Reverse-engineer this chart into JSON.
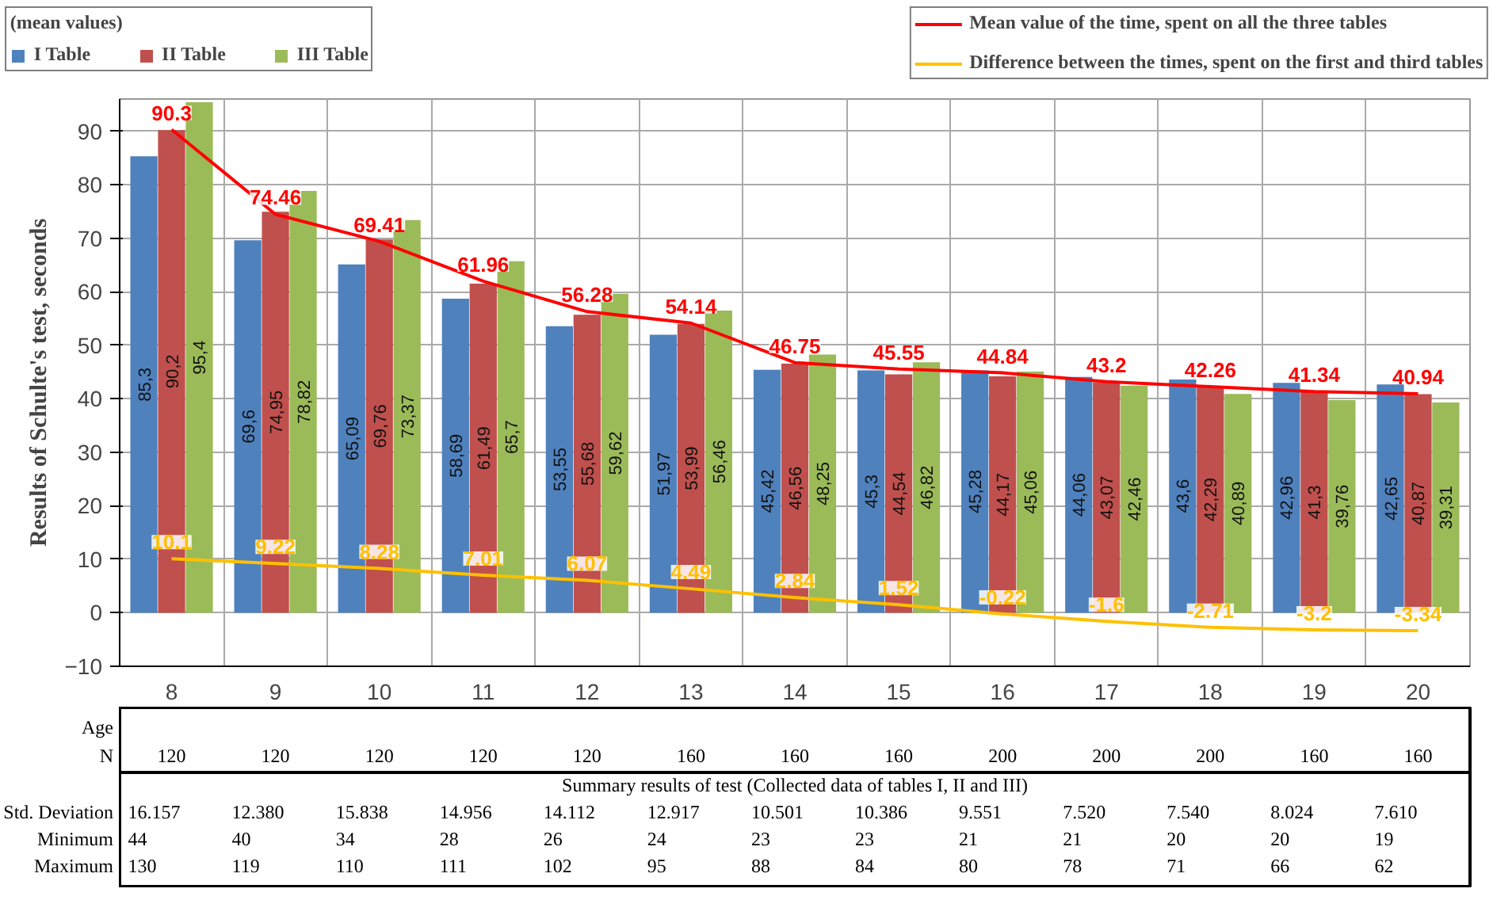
{
  "chart_data": {
    "type": "bar",
    "ylabel": "Results of Schulte's test, seconds",
    "legend_title": "(mean values)",
    "categories": [
      "8",
      "9",
      "10",
      "11",
      "12",
      "13",
      "14",
      "15",
      "16",
      "17",
      "18",
      "19",
      "20"
    ],
    "series": [
      {
        "name": "I Table",
        "color": "#4f81bd",
        "values": [
          85.3,
          69.6,
          65.09,
          58.69,
          53.55,
          51.97,
          45.42,
          45.3,
          45.28,
          44.06,
          43.6,
          42.96,
          42.65
        ],
        "value_labels": [
          "85,3",
          "69,6",
          "65,09",
          "58,69",
          "53,55",
          "51,97",
          "45,42",
          "45,3",
          "45,28",
          "44,06",
          "43,6",
          "42,96",
          "42,65"
        ]
      },
      {
        "name": "II Table",
        "color": "#c0504d",
        "values": [
          90.2,
          74.95,
          69.76,
          61.49,
          55.68,
          53.99,
          46.56,
          44.54,
          44.17,
          43.07,
          42.29,
          41.3,
          40.87
        ],
        "value_labels": [
          "90,2",
          "74,95",
          "69,76",
          "61,49",
          "55,68",
          "53,99",
          "46,56",
          "44,54",
          "44,17",
          "43,07",
          "42,29",
          "41,3",
          "40,87"
        ]
      },
      {
        "name": "III Table",
        "color": "#9bbb59",
        "values": [
          95.4,
          78.82,
          73.37,
          65.7,
          59.62,
          56.46,
          48.25,
          46.82,
          45.06,
          42.46,
          40.89,
          39.76,
          39.31
        ],
        "value_labels": [
          "95,4",
          "78,82",
          "73,37",
          "65,7",
          "59,62",
          "56,46",
          "48,25",
          "46,82",
          "45,06",
          "42,46",
          "40,89",
          "39,76",
          "39,31"
        ]
      },
      {
        "name": "Mean value of the time, spent on all the three tables",
        "type": "line",
        "color": "#ff0000",
        "values": [
          90.3,
          74.46,
          69.41,
          61.96,
          56.28,
          54.14,
          46.75,
          45.55,
          44.84,
          43.2,
          42.26,
          41.34,
          40.94
        ],
        "value_labels": [
          "90.3",
          "74.46",
          "69.41",
          "61.96",
          "56.28",
          "54.14",
          "46.75",
          "45.55",
          "44.84",
          "43.2",
          "42.26",
          "41.34",
          "40.94"
        ]
      },
      {
        "name": "Difference between the times, spent on the first and third tables",
        "type": "line",
        "color": "#ffc000",
        "values": [
          10.1,
          9.22,
          8.28,
          7.01,
          6.07,
          4.49,
          2.84,
          1.52,
          -0.22,
          -1.6,
          -2.71,
          -3.2,
          -3.34
        ],
        "value_labels": [
          "10.1",
          "9.22",
          "8.28",
          "7.01",
          "6.07",
          "4.49",
          "2.84",
          "1.52",
          "-0.22",
          "-1.6",
          "-2.71",
          "-3.2",
          "-3.34"
        ]
      }
    ],
    "ylim": [
      -10,
      96
    ],
    "yticks": [
      -10,
      0,
      10,
      20,
      30,
      40,
      50,
      60,
      70,
      80,
      90
    ],
    "grid": true,
    "legend": "top",
    "marker": "none",
    "line_style": "solid",
    "annotations": [
      "Age",
      "N",
      "120",
      "120",
      "120",
      "120",
      "120",
      "160",
      "160",
      "160",
      "200",
      "200",
      "200",
      "160",
      "160",
      "Summary results of test (Collected data of tables I, II and III)",
      "Std. Deviation",
      "16.157",
      "12.380",
      "15.838",
      "14.956",
      "14.112",
      "12.917",
      "10.501",
      "10.386",
      "9.551",
      "7.520",
      "7.540",
      "8.024",
      "7.610",
      "Minimum",
      "44",
      "40",
      "34",
      "28",
      "26",
      "24",
      "23",
      "23",
      "21",
      "21",
      "20",
      "20",
      "19",
      "Maximum",
      "130",
      "119",
      "110",
      "111",
      "102",
      "95",
      "88",
      "84",
      "80",
      "78",
      "71",
      "66",
      "62"
    ]
  }
}
